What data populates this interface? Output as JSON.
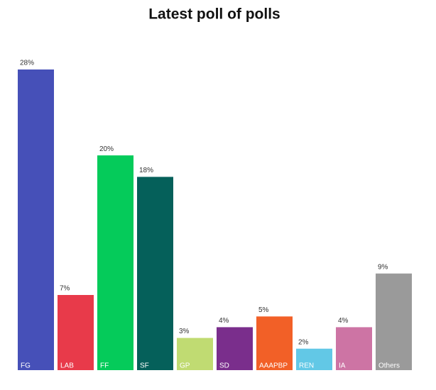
{
  "chart_data": {
    "type": "bar",
    "title": "Latest poll of polls",
    "categories": [
      "FG",
      "LAB",
      "FF",
      "SF",
      "GP",
      "SD",
      "AAAPBP",
      "REN",
      "IA",
      "Others"
    ],
    "values": [
      28,
      7,
      20,
      18,
      3,
      4,
      5,
      2,
      4,
      9
    ],
    "value_labels": [
      "28%",
      "7%",
      "20%",
      "18%",
      "3%",
      "4%",
      "5%",
      "2%",
      "4%",
      "9%"
    ],
    "colors": [
      "#4650b8",
      "#e83a4a",
      "#05cb5a",
      "#05605a",
      "#c0db72",
      "#7a2e8c",
      "#f26027",
      "#62c8e6",
      "#cd74a4",
      "#9a9a9a"
    ]
  }
}
